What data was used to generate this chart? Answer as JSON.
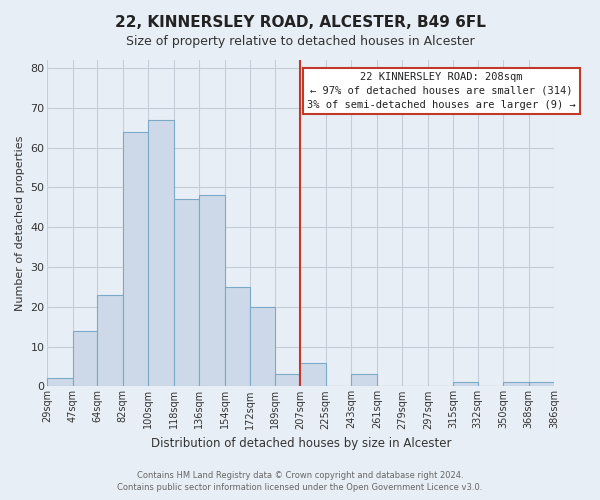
{
  "title": "22, KINNERSLEY ROAD, ALCESTER, B49 6FL",
  "subtitle": "Size of property relative to detached houses in Alcester",
  "xlabel": "Distribution of detached houses by size in Alcester",
  "ylabel": "Number of detached properties",
  "bin_edges": [
    29,
    47,
    64,
    82,
    100,
    118,
    136,
    154,
    172,
    189,
    207,
    225,
    243,
    261,
    279,
    297,
    315,
    332,
    350,
    368,
    386
  ],
  "bar_heights": [
    2,
    14,
    23,
    64,
    67,
    47,
    48,
    25,
    20,
    3,
    6,
    0,
    3,
    0,
    0,
    0,
    1,
    0,
    1,
    1
  ],
  "bar_facecolor": "#cdd9e8",
  "bar_edgecolor": "#7aaac8",
  "highlight_x": 207,
  "annotation_title": "22 KINNERSLEY ROAD: 208sqm",
  "annotation_line1": "← 97% of detached houses are smaller (314)",
  "annotation_line2": "3% of semi-detached houses are larger (9) →",
  "annotation_box_edgecolor": "#c0392b",
  "vline_color": "#c0392b",
  "ylim": [
    0,
    82
  ],
  "xlim_left": 29,
  "xlim_right": 386,
  "tick_labels": [
    "29sqm",
    "47sqm",
    "64sqm",
    "82sqm",
    "100sqm",
    "118sqm",
    "136sqm",
    "154sqm",
    "172sqm",
    "189sqm",
    "207sqm",
    "225sqm",
    "243sqm",
    "261sqm",
    "279sqm",
    "297sqm",
    "315sqm",
    "332sqm",
    "350sqm",
    "368sqm",
    "386sqm"
  ],
  "background_color": "#e8eef5",
  "plot_bg_color": "#e8eef5",
  "grid_color": "#c5cdd8",
  "footer_line1": "Contains HM Land Registry data © Crown copyright and database right 2024.",
  "footer_line2": "Contains public sector information licensed under the Open Government Licence v3.0.",
  "title_fontsize": 11,
  "subtitle_fontsize": 9,
  "ylabel_fontsize": 8,
  "xlabel_fontsize": 8.5,
  "tick_fontsize": 7,
  "ytick_vals": [
    0,
    10,
    20,
    30,
    40,
    50,
    60,
    70,
    80
  ]
}
